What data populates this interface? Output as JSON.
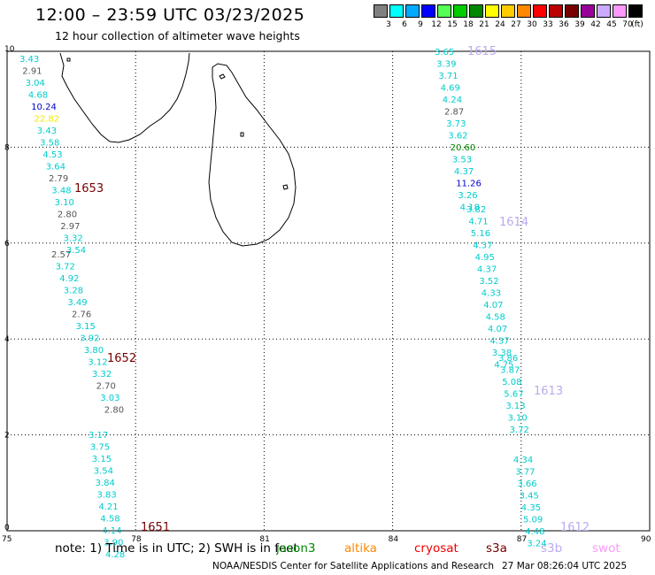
{
  "header": {
    "title": "12:00 – 23:59 UTC 03/23/2025",
    "subtitle": "12 hour collection of altimeter wave heights"
  },
  "legend": {
    "unit": "(ft)",
    "swatches": [
      {
        "label": "3",
        "color": "#808080"
      },
      {
        "label": "6",
        "color": "#00ffff"
      },
      {
        "label": "9",
        "color": "#00aaff"
      },
      {
        "label": "12",
        "color": "#0000ff"
      },
      {
        "label": "15",
        "color": "#55ff55"
      },
      {
        "label": "18",
        "color": "#00cc00"
      },
      {
        "label": "21",
        "color": "#008800"
      },
      {
        "label": "24",
        "color": "#ffff00"
      },
      {
        "label": "27",
        "color": "#ffcc00"
      },
      {
        "label": "30",
        "color": "#ff8800"
      },
      {
        "label": "33",
        "color": "#ff0000"
      },
      {
        "label": "36",
        "color": "#bb0000"
      },
      {
        "label": "39",
        "color": "#770000"
      },
      {
        "label": "42",
        "color": "#990099"
      },
      {
        "label": "45",
        "color": "#ccaaff"
      },
      {
        "label": "70",
        "color": "#ff99ff"
      },
      {
        "label": "",
        "color": "#000000"
      }
    ]
  },
  "map": {
    "x_ticks": [
      "75",
      "78",
      "81",
      "84",
      "87",
      "90"
    ],
    "y_ticks": [
      "10",
      "8",
      "6",
      "4",
      "2",
      "0"
    ],
    "passes": [
      {
        "id": "1653",
        "color": "#770000",
        "points": [
          {
            "v": "3.43",
            "c": "#00cccc"
          },
          {
            "v": "2.91",
            "c": "#555555"
          },
          {
            "v": "3.04",
            "c": "#00cccc"
          },
          {
            "v": "4.68",
            "c": "#00cccc"
          },
          {
            "v": "10.24",
            "c": "#0000cc"
          },
          {
            "v": "22.82",
            "c": "#eeee00"
          },
          {
            "v": "3.43",
            "c": "#00cccc"
          },
          {
            "v": "3.58",
            "c": "#00cccc"
          },
          {
            "v": "4.53",
            "c": "#00cccc"
          },
          {
            "v": "3.64",
            "c": "#00cccc"
          },
          {
            "v": "2.79",
            "c": "#555555"
          },
          {
            "v": "3.48",
            "c": "#00cccc"
          },
          {
            "v": "3.10",
            "c": "#00cccc"
          },
          {
            "v": "2.80",
            "c": "#555555"
          },
          {
            "v": "2.97",
            "c": "#555555"
          },
          {
            "v": "3.32",
            "c": "#00cccc"
          },
          {
            "v": "3.54",
            "c": "#00cccc"
          }
        ]
      },
      {
        "id": "1652",
        "color": "#770000",
        "points": [
          {
            "v": "2.57",
            "c": "#555555"
          },
          {
            "v": "3.72",
            "c": "#00cccc"
          },
          {
            "v": "4.92",
            "c": "#00cccc"
          },
          {
            "v": "3.28",
            "c": "#00cccc"
          },
          {
            "v": "3.49",
            "c": "#00cccc"
          },
          {
            "v": "2.76",
            "c": "#555555"
          },
          {
            "v": "3.15",
            "c": "#00cccc"
          },
          {
            "v": "3.92",
            "c": "#00cccc"
          },
          {
            "v": "3.80",
            "c": "#00cccc"
          },
          {
            "v": "3.12",
            "c": "#00cccc"
          },
          {
            "v": "3.32",
            "c": "#00cccc"
          },
          {
            "v": "2.70",
            "c": "#555555"
          },
          {
            "v": "3.03",
            "c": "#00cccc"
          },
          {
            "v": "2.80",
            "c": "#555555"
          }
        ]
      },
      {
        "id": "1651",
        "color": "#770000",
        "points": [
          {
            "v": "3.17",
            "c": "#00cccc"
          },
          {
            "v": "3.75",
            "c": "#00cccc"
          },
          {
            "v": "3.15",
            "c": "#00cccc"
          },
          {
            "v": "3.54",
            "c": "#00cccc"
          },
          {
            "v": "3.84",
            "c": "#00cccc"
          },
          {
            "v": "3.83",
            "c": "#00cccc"
          },
          {
            "v": "4.21",
            "c": "#00cccc"
          },
          {
            "v": "4.58",
            "c": "#00cccc"
          },
          {
            "v": "4.14",
            "c": "#00cccc"
          },
          {
            "v": "3.90",
            "c": "#00cccc"
          },
          {
            "v": "4.28",
            "c": "#00cccc"
          }
        ]
      },
      {
        "id": "1615",
        "color": "#bbaaee",
        "points": [
          {
            "v": "3.65",
            "c": "#00cccc"
          },
          {
            "v": "3.39",
            "c": "#00cccc"
          },
          {
            "v": "3.71",
            "c": "#00cccc"
          },
          {
            "v": "4.69",
            "c": "#00cccc"
          },
          {
            "v": "4.24",
            "c": "#00cccc"
          },
          {
            "v": "2.87",
            "c": "#555555"
          },
          {
            "v": "3.73",
            "c": "#00cccc"
          },
          {
            "v": "3.62",
            "c": "#00cccc"
          },
          {
            "v": "20.60",
            "c": "#008800"
          },
          {
            "v": "3.53",
            "c": "#00cccc"
          },
          {
            "v": "4.37",
            "c": "#00cccc"
          },
          {
            "v": "11.26",
            "c": "#0000cc"
          },
          {
            "v": "3.26",
            "c": "#00cccc"
          },
          {
            "v": "4.18",
            "c": "#00cccc"
          }
        ]
      },
      {
        "id": "1614",
        "color": "#bbaaee",
        "points": [
          {
            "v": "3.82",
            "c": "#00cccc"
          },
          {
            "v": "4.71",
            "c": "#00cccc"
          },
          {
            "v": "5.16",
            "c": "#00cccc"
          },
          {
            "v": "4.37",
            "c": "#00cccc"
          },
          {
            "v": "4.95",
            "c": "#00cccc"
          },
          {
            "v": "4.37",
            "c": "#00cccc"
          },
          {
            "v": "3.52",
            "c": "#00cccc"
          },
          {
            "v": "4.33",
            "c": "#00cccc"
          },
          {
            "v": "4.07",
            "c": "#00cccc"
          },
          {
            "v": "4.58",
            "c": "#00cccc"
          },
          {
            "v": "4.07",
            "c": "#00cccc"
          },
          {
            "v": "4.37",
            "c": "#00cccc"
          },
          {
            "v": "3.38",
            "c": "#00cccc"
          },
          {
            "v": "4.75",
            "c": "#00cccc"
          }
        ]
      },
      {
        "id": "1613",
        "color": "#bbaaee",
        "points": [
          {
            "v": "3.86",
            "c": "#00cccc"
          },
          {
            "v": "3.87",
            "c": "#00cccc"
          },
          {
            "v": "5.08",
            "c": "#00cccc"
          },
          {
            "v": "5.67",
            "c": "#00cccc"
          },
          {
            "v": "3.13",
            "c": "#00cccc"
          },
          {
            "v": "3.10",
            "c": "#00cccc"
          },
          {
            "v": "3.72",
            "c": "#00cccc"
          }
        ]
      },
      {
        "id": "1612",
        "color": "#bbaaee",
        "points": [
          {
            "v": "4.34",
            "c": "#00cccc"
          },
          {
            "v": "3.77",
            "c": "#00cccc"
          },
          {
            "v": "3.66",
            "c": "#00cccc"
          },
          {
            "v": "3.45",
            "c": "#00cccc"
          },
          {
            "v": "4.35",
            "c": "#00cccc"
          },
          {
            "v": "5.09",
            "c": "#00cccc"
          },
          {
            "v": "4.48",
            "c": "#00cccc"
          },
          {
            "v": "3.24",
            "c": "#00cccc"
          }
        ]
      }
    ]
  },
  "footer": {
    "note": "note: 1) Time is in UTC; 2) SWH is in feet",
    "satellites": [
      {
        "name": "jason3",
        "color": "#008800"
      },
      {
        "name": "altika",
        "color": "#ff8800"
      },
      {
        "name": "cryosat",
        "color": "#ee0000"
      },
      {
        "name": "s3a",
        "color": "#770000"
      },
      {
        "name": "s3b",
        "color": "#bbaaee"
      },
      {
        "name": "swot",
        "color": "#ff99ff"
      }
    ],
    "credit": "NOAA/NESDIS Center for Satellite Applications and Research",
    "timestamp": "27 Mar 08:26:04 UTC 2025"
  }
}
